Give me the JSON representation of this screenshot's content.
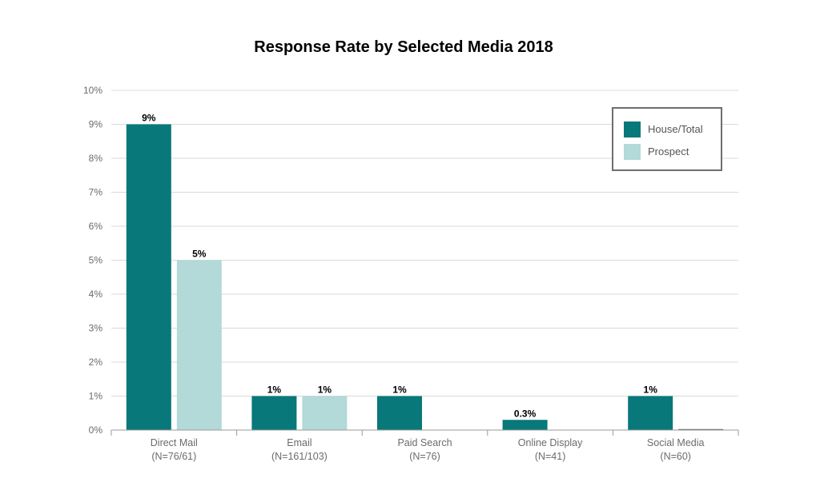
{
  "chart_data": {
    "type": "bar",
    "title": "Response Rate by Selected Media 2018",
    "categories": [
      "Direct Mail",
      "Email",
      "Paid Search",
      "Online Display",
      "Social Media"
    ],
    "category_sublabels": [
      "(N=76/61)",
      "(N=161/103)",
      "(N=76)",
      "(N=41)",
      "(N=60)"
    ],
    "series": [
      {
        "name": "House/Total",
        "color": "#08787a",
        "values": [
          9,
          1,
          1,
          0.3,
          1
        ],
        "labels": [
          "9%",
          "1%",
          "1%",
          "0.3%",
          "1%"
        ]
      },
      {
        "name": "Prospect",
        "color": "#b3d9d9",
        "values": [
          5,
          1,
          null,
          null,
          0
        ],
        "labels": [
          "5%",
          "1%",
          null,
          null,
          null
        ]
      }
    ],
    "ylim": [
      0,
      10
    ],
    "yticks": [
      "0%",
      "1%",
      "2%",
      "3%",
      "4%",
      "5%",
      "6%",
      "7%",
      "8%",
      "9%",
      "10%"
    ],
    "xlabel": "",
    "ylabel": "",
    "grid": true,
    "legend": "top-right"
  }
}
